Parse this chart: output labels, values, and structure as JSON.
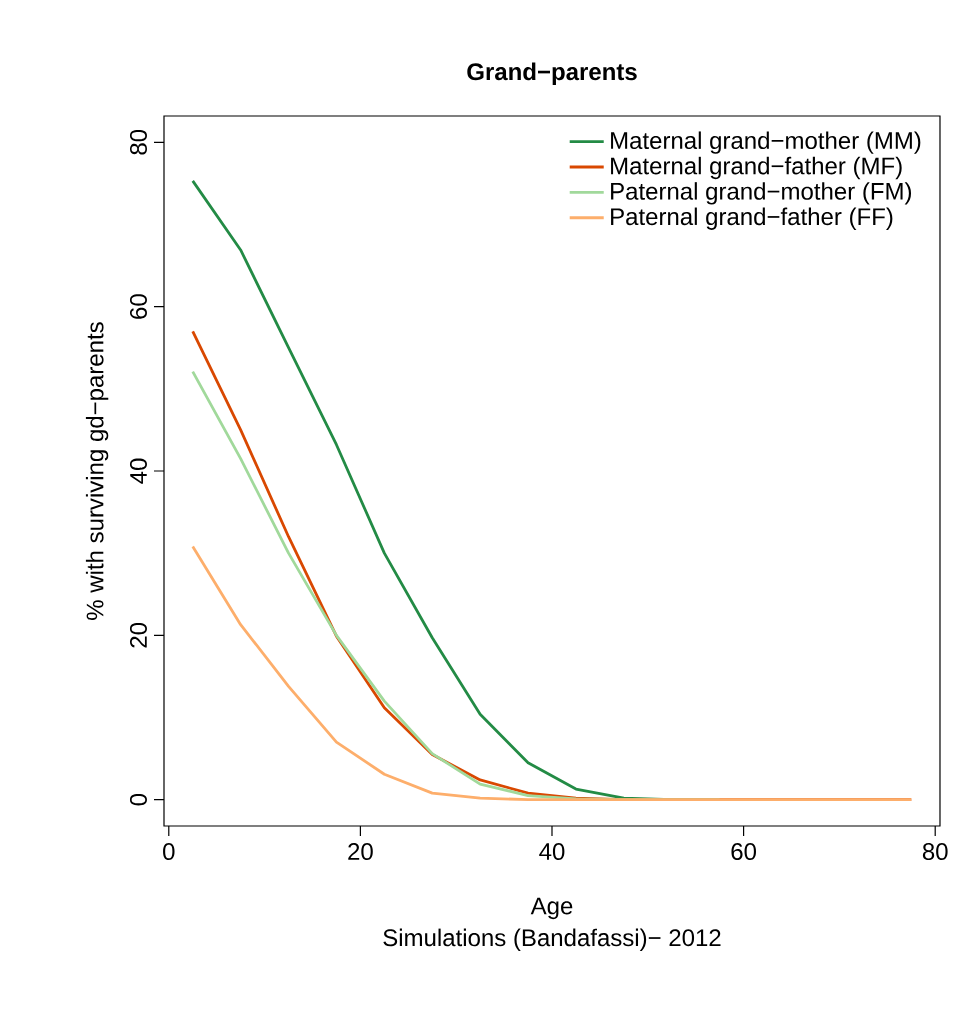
{
  "chart_data": {
    "type": "line",
    "title": "Grand−parents",
    "xlabel": "Age",
    "ylabel": "% with surviving gd−parents",
    "annotations": [
      "Simulations (Bandafassi)− 2012"
    ],
    "x": [
      2.5,
      7.5,
      12.5,
      17.5,
      22.5,
      27.5,
      32.5,
      37.5,
      42.5,
      47.5,
      52.5,
      57.5,
      62.5,
      67.5,
      72.5,
      77.5
    ],
    "series": [
      {
        "name": "Maternal grand−mother (MM)",
        "color": "#238b45",
        "values": [
          75.3,
          66.9,
          55.0,
          43.2,
          30.0,
          19.7,
          10.4,
          4.5,
          1.3,
          0.2,
          0,
          0,
          null,
          null,
          null,
          null
        ]
      },
      {
        "name": "Maternal grand−father (MF)",
        "color": "#d94801",
        "values": [
          57.0,
          45.0,
          32.0,
          19.9,
          11.2,
          5.5,
          2.4,
          0.8,
          0.2,
          0,
          0,
          0,
          0,
          0,
          0,
          0
        ]
      },
      {
        "name": "Paternal grand−mother (FM)",
        "color": "#a1d99b",
        "values": [
          52.1,
          41.5,
          30.0,
          20.0,
          12.0,
          5.6,
          1.9,
          0.5,
          0.1,
          0,
          0,
          0,
          null,
          null,
          null,
          null
        ]
      },
      {
        "name": "Paternal grand−father (FF)",
        "color": "#fdae6b",
        "values": [
          30.8,
          21.3,
          13.8,
          7.0,
          3.1,
          0.8,
          0.2,
          0,
          0,
          0,
          0,
          0,
          0,
          0,
          0,
          0
        ]
      }
    ],
    "xlim": [
      -0.5,
      80.5
    ],
    "ylim": [
      -3.2,
      83.2
    ],
    "xticks": [
      0,
      20,
      40,
      60,
      80
    ],
    "yticks": [
      0,
      20,
      40,
      60,
      80
    ],
    "legend": "top right",
    "grid": false,
    "marker": "none",
    "line_style": "solid"
  }
}
